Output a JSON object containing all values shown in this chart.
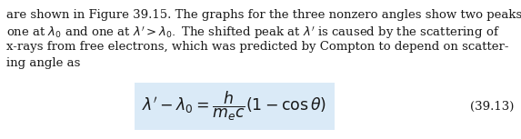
{
  "body_text_lines": [
    "are shown in Figure 39.15. The graphs for the three nonzero angles show two peaks,",
    "one at $\\lambda_0$ and one at $\\lambda' > \\lambda_0.$ The shifted peak at $\\lambda'$ is caused by the scattering of",
    "x-rays from free electrons, which was predicted by Compton to depend on scatter-",
    "ing angle as"
  ],
  "equation_number": "(39.13)",
  "eq_box_color": "#daeaf7",
  "text_color": "#1a1a1a",
  "font_size_body": 9.5,
  "font_size_eq": 12.5,
  "font_size_eq_num": 9.5,
  "background_color": "#ffffff",
  "fig_width": 5.73,
  "fig_height": 1.53,
  "dpi": 100
}
